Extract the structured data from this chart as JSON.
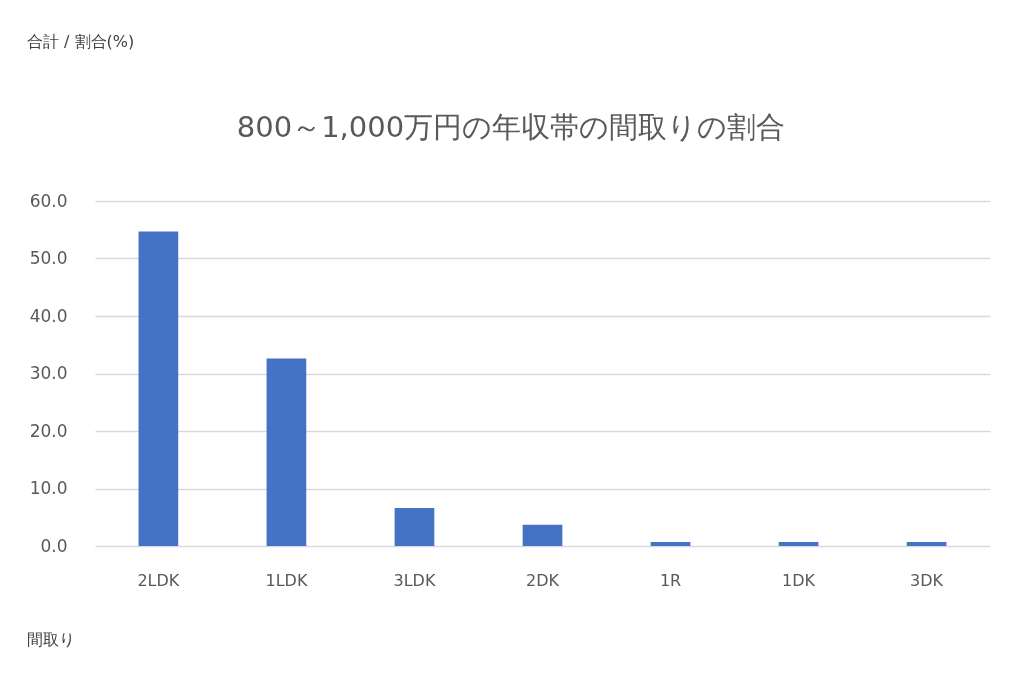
{
  "chart_data": {
    "type": "bar",
    "title": "800～1,000万円の年収帯の間取りの割合",
    "annotations": [
      "合計 / 割合(%)",
      "間取り"
    ],
    "categories": [
      "2LDK",
      "1LDK",
      "3LDK",
      "2DK",
      "1R",
      "1DK",
      "3DK"
    ],
    "values": [
      54.7,
      32.6,
      6.6,
      3.7,
      0.7,
      0.7,
      0.7
    ],
    "color": "#4472c4",
    "ylim": [
      0,
      60
    ],
    "yticks": [
      {
        "value": 0,
        "label": "0.0"
      },
      {
        "value": 10,
        "label": "10.0"
      },
      {
        "value": 20,
        "label": "20.0"
      },
      {
        "value": 30,
        "label": "30.0"
      },
      {
        "value": 40,
        "label": "40.0"
      },
      {
        "value": 50,
        "label": "50.0"
      },
      {
        "value": 60,
        "label": "60.0"
      }
    ],
    "grid": "y"
  }
}
